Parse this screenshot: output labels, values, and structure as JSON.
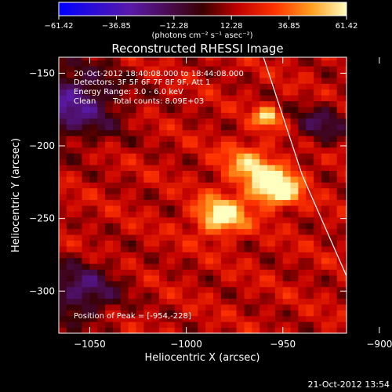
{
  "chart_data": {
    "type": "heatmap",
    "title": "Reconstructed RHESSI Image",
    "xlabel": "Heliocentric X (arcsec)",
    "ylabel": "Heliocentric Y (arcsec)",
    "xlim": [
      -1066,
      -917
    ],
    "ylim": [
      -329,
      -139
    ],
    "x_ticks": [
      -1050,
      -1000,
      -950,
      -900
    ],
    "x_tick_labels": [
      "−1050",
      "−1000",
      "−950",
      "−900"
    ],
    "y_ticks": [
      -150,
      -200,
      -250,
      -300
    ],
    "y_tick_labels": [
      "−150",
      "−200",
      "−250",
      "−300"
    ],
    "colorbar": {
      "min": -61.42,
      "max": 61.42,
      "ticks": [
        -61.42,
        -36.85,
        -12.28,
        12.28,
        36.85,
        61.42
      ],
      "tick_labels": [
        "−61.42",
        "−36.85",
        "−12.28",
        "12.28",
        "36.85",
        "61.42"
      ],
      "unit_label": "(photons cm⁻² s⁻¹ asec⁻²)"
    },
    "sources": [
      {
        "x": -954,
        "y": -228,
        "sigma": 9,
        "amp": 61.4
      },
      {
        "x": -982,
        "y": -248,
        "sigma": 9,
        "amp": 50
      },
      {
        "x": -958,
        "y": -180,
        "sigma": 5,
        "amp": 40
      },
      {
        "x": -968,
        "y": -212,
        "sigma": 10,
        "amp": 30
      }
    ],
    "limb_line": [
      [
        -960,
        -139
      ],
      [
        -940,
        -220
      ],
      [
        -904,
        -329
      ]
    ],
    "annotations": {
      "line1": "20-Oct-2012 18:40:08.000 to 18:44:08.000",
      "line2": "Detectors: 3F 5F 6F 7F 8F 9F, Att 1",
      "line3": "Energy Range: 3.0 - 6.0 keV",
      "line4_label": "Clean",
      "line4_counts": "Total counts: 8.09E+03",
      "peak": "Position of Peak = [-954,-228]"
    },
    "footer_date": "21-Oct-2012 13:54"
  }
}
